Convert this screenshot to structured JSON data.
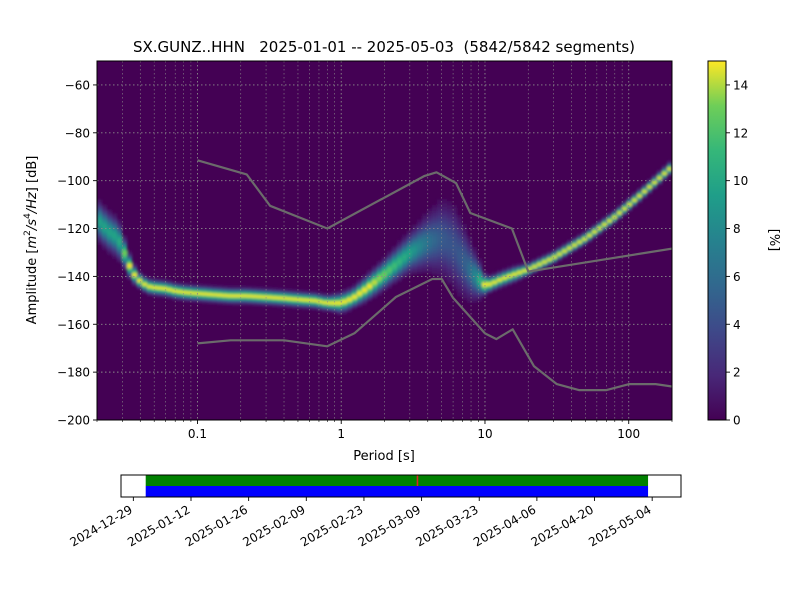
{
  "chart_data": [
    {
      "type": "heatmap",
      "title": "SX.GUNZ..HHN   2025-01-01 -- 2025-05-03  (5842/5842 segments)",
      "xlabel": "Period [s]",
      "ylabel": "Amplitude [m²/s⁴/Hz] [dB]",
      "ylabel_parts": {
        "base": "Amplitude [",
        "m": "m",
        "m_exp": "2",
        "slash1": "/",
        "s": "s",
        "s_exp": "4",
        "slash2": "/Hz",
        "tail": "] [dB]"
      },
      "x_scale": "log",
      "xlim": [
        0.02,
        200
      ],
      "ylim": [
        -200,
        -50
      ],
      "x_ticks": [
        {
          "value": 0.1,
          "label": "0.1"
        },
        {
          "value": 1,
          "label": "1"
        },
        {
          "value": 10,
          "label": "10"
        },
        {
          "value": 100,
          "label": "100"
        }
      ],
      "y_ticks": [
        {
          "value": -60,
          "label": "−60"
        },
        {
          "value": -80,
          "label": "−80"
        },
        {
          "value": -100,
          "label": "−100"
        },
        {
          "value": -120,
          "label": "−120"
        },
        {
          "value": -140,
          "label": "−140"
        },
        {
          "value": -160,
          "label": "−160"
        },
        {
          "value": -180,
          "label": "−180"
        },
        {
          "value": -200,
          "label": "−200"
        }
      ],
      "grid": true,
      "colormap": "viridis",
      "colorbar": {
        "label": "[%]",
        "range": [
          0,
          15
        ],
        "ticks": [
          {
            "value": 0,
            "label": "0"
          },
          {
            "value": 2,
            "label": "2"
          },
          {
            "value": 4,
            "label": "4"
          },
          {
            "value": 6,
            "label": "6"
          },
          {
            "value": 8,
            "label": "8"
          },
          {
            "value": 10,
            "label": "10"
          },
          {
            "value": 12,
            "label": "12"
          },
          {
            "value": 14,
            "label": "14"
          }
        ]
      },
      "mode_curve": {
        "period": [
          0.02,
          0.024,
          0.028,
          0.031,
          0.035,
          0.04,
          0.045,
          0.05,
          0.06,
          0.07,
          0.08,
          0.1,
          0.13,
          0.17,
          0.22,
          0.3,
          0.4,
          0.5,
          0.65,
          0.8,
          1.0,
          1.2,
          1.5,
          2.0,
          2.5,
          3.0,
          3.5,
          4.0,
          5.0,
          6.0,
          7.0,
          8.0,
          9.0,
          10.0,
          11.0,
          13.0,
          16.0,
          20.0,
          30.0,
          50.0,
          80.0,
          120.0,
          200.0
        ],
        "amplitude": [
          -116,
          -121,
          -124,
          -130,
          -138,
          -142,
          -144,
          -144.5,
          -145,
          -146,
          -146.5,
          -147,
          -147.5,
          -148,
          -148,
          -148.5,
          -149,
          -149.5,
          -150,
          -151,
          -151,
          -149,
          -145,
          -139,
          -134,
          -130,
          -127.5,
          -125.5,
          -124,
          -127,
          -133,
          -138,
          -141,
          -143.5,
          -143,
          -141,
          -139,
          -137,
          -132,
          -124,
          -115,
          -106,
          -94
        ],
        "spread": [
          4,
          4,
          4,
          3,
          2,
          1.5,
          1.5,
          1.5,
          1.5,
          1.5,
          1.5,
          1.5,
          1.5,
          1.5,
          1.5,
          1.5,
          1.5,
          1.5,
          1.5,
          1.5,
          2,
          2,
          2.5,
          3,
          3.5,
          4,
          5,
          6,
          8,
          9,
          8,
          6,
          4,
          2,
          1.5,
          1.5,
          1.5,
          1.2,
          1.2,
          1.2,
          1.2,
          1.2,
          1.2
        ]
      },
      "noise_models": [
        {
          "name": "NHNM",
          "period": [
            0.1,
            0.22,
            0.32,
            0.8,
            3.8,
            4.6,
            6.3,
            7.9,
            15.4,
            20,
            354.8
          ],
          "amplitude": [
            -91.5,
            -97.4,
            -110.5,
            -120,
            -98,
            -96.5,
            -101,
            -113.5,
            -120,
            -138,
            -126
          ]
        },
        {
          "name": "NLNM",
          "period": [
            0.1,
            0.17,
            0.4,
            0.8,
            1.24,
            2.4,
            4.3,
            5.0,
            6.0,
            10.0,
            12.0,
            15.6,
            21.9,
            31.6,
            45.0,
            70.0,
            101.0,
            154.0,
            200.0
          ],
          "amplitude": [
            -168,
            -166.7,
            -166.7,
            -169.2,
            -163.7,
            -148.6,
            -141.1,
            -141.1,
            -149,
            -163.8,
            -166.2,
            -162.1,
            -177.5,
            -185,
            -187.5,
            -187.5,
            -185,
            -185,
            -186
          ]
        }
      ]
    },
    {
      "type": "timeline",
      "x_range": [
        "2024-12-26",
        "2025-05-11"
      ],
      "coverage": [
        {
          "start": "2025-01-01",
          "end": "2025-05-03",
          "bands": [
            "#008000",
            "#0000ff"
          ]
        }
      ],
      "gap_marks": [
        {
          "date": "2025-03-08",
          "color": "#d62728"
        }
      ],
      "x_ticks": [
        "2024-12-29",
        "2025-01-12",
        "2025-01-26",
        "2025-02-09",
        "2025-02-23",
        "2025-03-09",
        "2025-03-23",
        "2025-04-06",
        "2025-04-20",
        "2025-05-04"
      ]
    }
  ]
}
